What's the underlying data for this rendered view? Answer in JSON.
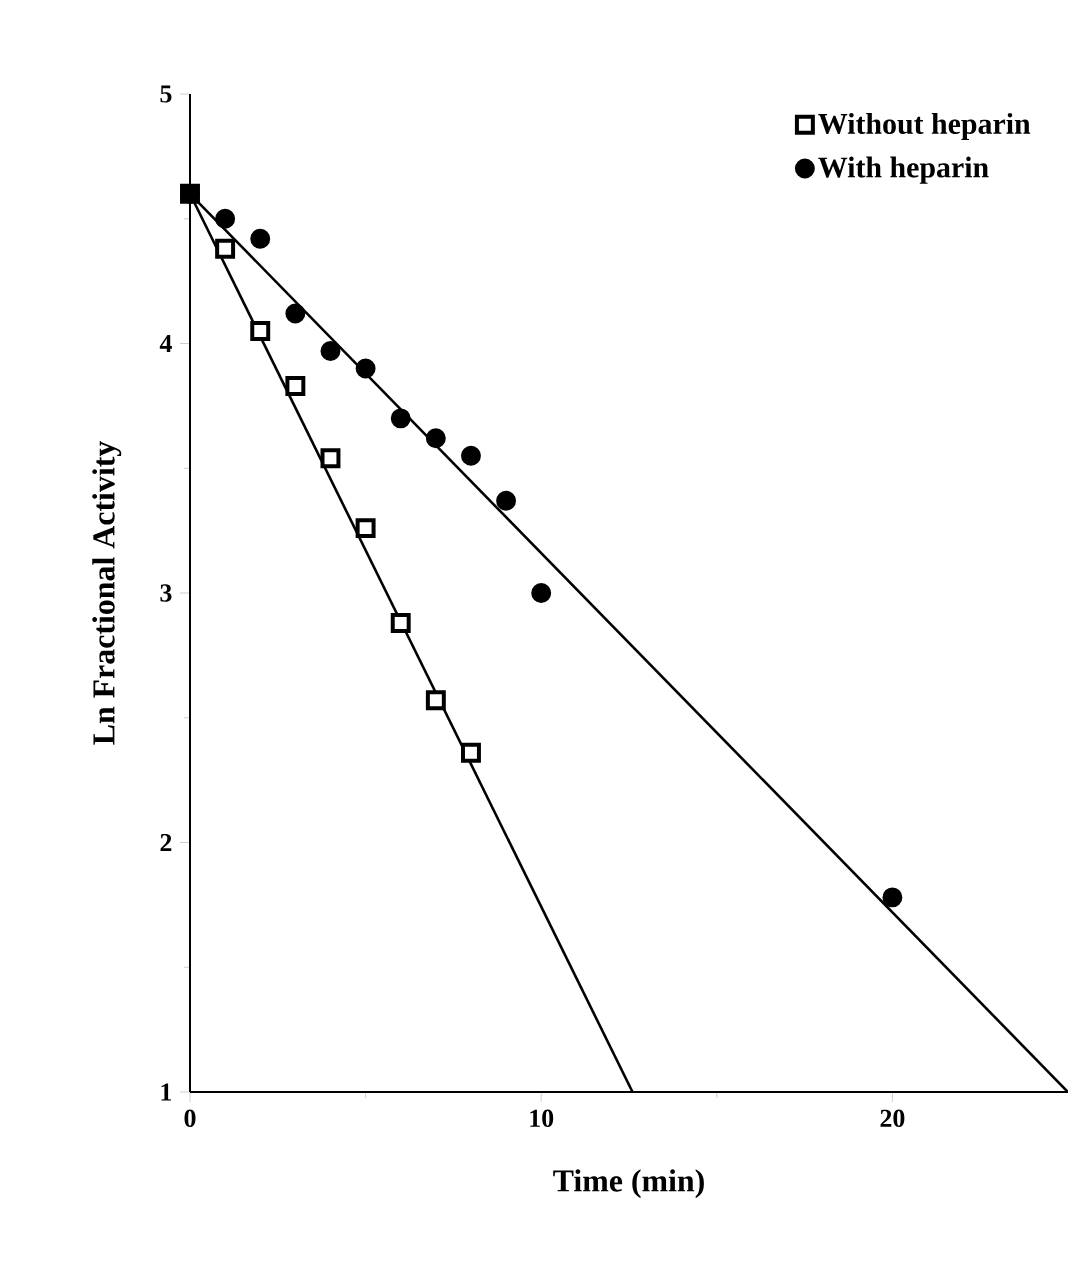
{
  "chart_data": {
    "type": "scatter",
    "xlabel": "Time (min)",
    "ylabel": "Ln Fractional Activity",
    "xlim": [
      0,
      25
    ],
    "ylim": [
      1,
      5
    ],
    "xticks": [
      0,
      10,
      20
    ],
    "yticks": [
      1,
      2,
      3,
      4,
      5
    ],
    "legend": "top right",
    "grid": false,
    "series": [
      {
        "name": "Without heparin",
        "marker": "square",
        "color": "#000000",
        "x": [
          0,
          1,
          2,
          3,
          4,
          5,
          6,
          7,
          8
        ],
        "values": [
          4.6,
          4.38,
          4.05,
          3.83,
          3.54,
          3.26,
          2.88,
          2.57,
          2.36
        ]
      },
      {
        "name": "With heparin",
        "marker": "circle",
        "color": "#000000",
        "x": [
          0,
          1,
          2,
          3,
          4,
          5,
          6,
          7,
          8,
          9,
          10,
          20
        ],
        "values": [
          4.6,
          4.5,
          4.42,
          4.12,
          3.97,
          3.9,
          3.7,
          3.62,
          3.55,
          3.37,
          3.0,
          1.78
        ]
      },
      {
        "type": "line",
        "marker": "none",
        "color": "#000000",
        "x": [
          0,
          12.6
        ],
        "values": [
          4.6,
          1
        ]
      },
      {
        "type": "line",
        "marker": "none",
        "color": "#000000",
        "x": [
          0,
          25
        ],
        "values": [
          4.6,
          1
        ]
      }
    ]
  }
}
